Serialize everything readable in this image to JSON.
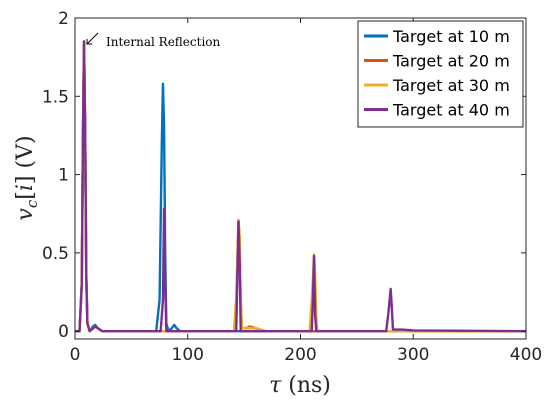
{
  "chart_data": {
    "type": "line",
    "xlabel": "τ (ns)",
    "ylabel": "v_c[i] (V)",
    "xlim": [
      0,
      400
    ],
    "ylim": [
      -0.05,
      2
    ],
    "xticks": [
      0,
      100,
      200,
      300,
      400
    ],
    "yticks": [
      0,
      0.5,
      1,
      1.5,
      2
    ],
    "xtick_labels": [
      "0",
      "100",
      "200",
      "300",
      "400"
    ],
    "ytick_labels": [
      "0",
      "0.5",
      "1",
      "1.5",
      "2"
    ],
    "grid": false,
    "legend_position": "top-right",
    "annotation": {
      "text": "Internal Reflection",
      "x": 9,
      "y": 1.85
    },
    "series": [
      {
        "name": "Target at 10 m",
        "color": "#0072BD",
        "points": [
          [
            0,
            0
          ],
          [
            4,
            0
          ],
          [
            6,
            0.3
          ],
          [
            7,
            1.2
          ],
          [
            8,
            1.85
          ],
          [
            9,
            1.3
          ],
          [
            10,
            0.35
          ],
          [
            11,
            0.05
          ],
          [
            13,
            0
          ],
          [
            16,
            0.03
          ],
          [
            18,
            0.04
          ],
          [
            20,
            0.02
          ],
          [
            24,
            0
          ],
          [
            72,
            0
          ],
          [
            75,
            0.2
          ],
          [
            77,
            1.2
          ],
          [
            78,
            1.58
          ],
          [
            79,
            1.3
          ],
          [
            80,
            0.5
          ],
          [
            81,
            0.05
          ],
          [
            83,
            0
          ],
          [
            86,
            0.02
          ],
          [
            88,
            0.04
          ],
          [
            90,
            0.02
          ],
          [
            93,
            0
          ],
          [
            400,
            0
          ]
        ]
      },
      {
        "name": "Target at 20 m",
        "color": "#D95319",
        "points": [
          [
            0,
            0
          ],
          [
            4,
            0
          ],
          [
            6,
            0.3
          ],
          [
            7,
            1.2
          ],
          [
            8,
            1.85
          ],
          [
            9,
            1.3
          ],
          [
            10,
            0.35
          ],
          [
            11,
            0.05
          ],
          [
            13,
            0
          ],
          [
            18,
            0.03
          ],
          [
            24,
            0
          ],
          [
            141,
            0
          ],
          [
            143,
            0.2
          ],
          [
            145,
            0.71
          ],
          [
            146,
            0.6
          ],
          [
            147,
            0.2
          ],
          [
            148,
            0.02
          ],
          [
            152,
            0.02
          ],
          [
            155,
            0.03
          ],
          [
            160,
            0.02
          ],
          [
            165,
            0
          ],
          [
            400,
            0
          ]
        ]
      },
      {
        "name": "Target at 30 m",
        "color": "#EDB120",
        "points": [
          [
            0,
            0
          ],
          [
            4,
            0
          ],
          [
            6,
            0.3
          ],
          [
            7,
            1.2
          ],
          [
            8,
            1.85
          ],
          [
            9,
            1.3
          ],
          [
            10,
            0.35
          ],
          [
            11,
            0.05
          ],
          [
            13,
            0
          ],
          [
            18,
            0.03
          ],
          [
            24,
            0
          ],
          [
            141,
            0
          ],
          [
            143,
            0.2
          ],
          [
            145,
            0.71
          ],
          [
            146,
            0.6
          ],
          [
            147,
            0.2
          ],
          [
            148,
            0.02
          ],
          [
            160,
            0.02
          ],
          [
            170,
            0
          ],
          [
            208,
            0
          ],
          [
            210,
            0.2
          ],
          [
            212,
            0.49
          ],
          [
            213,
            0.35
          ],
          [
            214,
            0.1
          ],
          [
            215,
            0
          ],
          [
            400,
            0
          ]
        ]
      },
      {
        "name": "Target at 40 m",
        "color": "#7E2F8E",
        "points": [
          [
            0,
            0
          ],
          [
            4,
            0
          ],
          [
            6,
            0.3
          ],
          [
            7,
            1.2
          ],
          [
            8,
            1.85
          ],
          [
            9,
            1.3
          ],
          [
            10,
            0.35
          ],
          [
            11,
            0.05
          ],
          [
            13,
            0
          ],
          [
            18,
            0.03
          ],
          [
            24,
            0
          ],
          [
            76,
            0
          ],
          [
            78,
            0.2
          ],
          [
            79,
            0.78
          ],
          [
            80,
            0.3
          ],
          [
            81,
            0
          ],
          [
            143,
            0
          ],
          [
            145,
            0.7
          ],
          [
            146,
            0.45
          ],
          [
            147,
            0
          ],
          [
            210,
            0
          ],
          [
            211,
            0.2
          ],
          [
            212,
            0.48
          ],
          [
            213,
            0.1
          ],
          [
            214,
            0
          ],
          [
            276,
            0
          ],
          [
            278,
            0.12
          ],
          [
            280,
            0.27
          ],
          [
            281,
            0.15
          ],
          [
            282,
            0.01
          ],
          [
            290,
            0.01
          ],
          [
            300,
            0.005
          ],
          [
            400,
            0
          ]
        ]
      }
    ]
  }
}
